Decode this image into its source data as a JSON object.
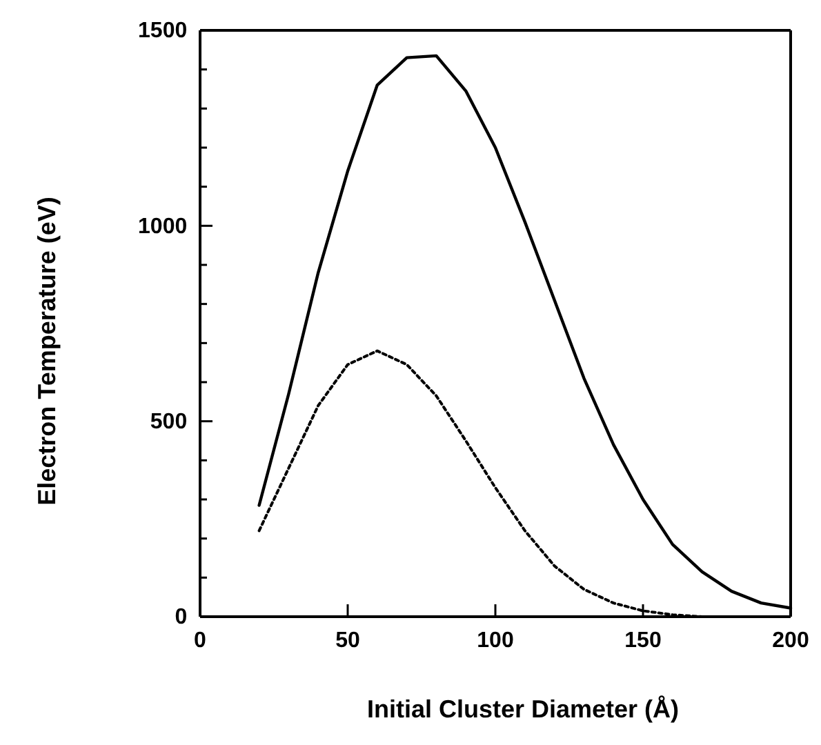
{
  "chart_data": {
    "type": "line",
    "xlabel": "Initial Cluster Diameter (Å)",
    "ylabel": "Electron Temperature (eV)",
    "xlim": [
      0,
      200
    ],
    "xticks": [
      0,
      50,
      100,
      150,
      200
    ],
    "ylim": [
      0,
      1500
    ],
    "yticks": [
      0,
      {
        "value": 100,
        "label": null
      },
      {
        "value": 200,
        "label": null
      },
      {
        "value": 300,
        "label": null
      },
      {
        "value": 400,
        "label": null
      },
      500,
      {
        "value": 600,
        "label": null
      },
      {
        "value": 700,
        "label": null
      },
      {
        "value": 800,
        "label": null
      },
      {
        "value": 900,
        "label": null
      },
      1000,
      {
        "value": 1100,
        "label": null
      },
      {
        "value": 1200,
        "label": null
      },
      {
        "value": 1300,
        "label": null
      },
      {
        "value": 1400,
        "label": null
      },
      1500
    ],
    "grid": false,
    "marker": "none",
    "series": [
      {
        "color": "#000000",
        "line_style": "solid",
        "x": [
          20,
          30,
          40,
          50,
          60,
          70,
          80,
          90,
          100,
          110,
          120,
          130,
          140,
          150,
          160,
          170,
          180,
          190,
          200
        ],
        "values": [
          285,
          570,
          880,
          1140,
          1360,
          1430,
          1435,
          1345,
          1200,
          1010,
          810,
          610,
          440,
          300,
          185,
          115,
          65,
          35,
          22
        ]
      },
      {
        "color": "#000000",
        "line_style": "dotted",
        "x": [
          20,
          30,
          40,
          50,
          60,
          70,
          80,
          90,
          100,
          110,
          120,
          130,
          140,
          150,
          160,
          170
        ],
        "values": [
          220,
          380,
          540,
          645,
          680,
          645,
          565,
          450,
          330,
          220,
          130,
          70,
          35,
          15,
          5,
          0
        ]
      }
    ]
  }
}
